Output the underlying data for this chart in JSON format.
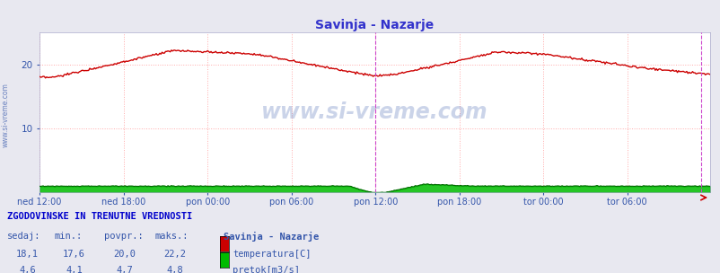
{
  "title": "Savinja - Nazarje",
  "title_color": "#3333cc",
  "bg_color": "#e8e8f0",
  "plot_bg_color": "#ffffff",
  "grid_color": "#ffaaaa",
  "xlim": [
    0,
    575
  ],
  "ylim": [
    0,
    25
  ],
  "yticks": [
    10,
    20
  ],
  "xtick_labels": [
    "ned 12:00",
    "ned 18:00",
    "pon 00:00",
    "pon 06:00",
    "pon 12:00",
    "pon 18:00",
    "tor 00:00",
    "tor 06:00"
  ],
  "xtick_positions": [
    0,
    72,
    144,
    216,
    288,
    360,
    432,
    504
  ],
  "watermark_text": "www.si-vreme.com",
  "watermark_color": "#3355aa",
  "watermark_alpha": 0.25,
  "left_label": "www.si-vreme.com",
  "left_label_color": "#3355aa",
  "temp_color": "#cc0000",
  "flow_color": "#006600",
  "flow_fill_color": "#00bb00",
  "vline_color": "#cc44cc",
  "vline_pos": 288,
  "right_vline_pos": 567,
  "footer_title": "ZGODOVINSKE IN TRENUTNE VREDNOSTI",
  "footer_title_color": "#0000cc",
  "footer_cols": [
    "sedaj:",
    "min.:",
    "povpr.:",
    "maks.:"
  ],
  "footer_data_temp": [
    "18,1",
    "17,6",
    "20,0",
    "22,2"
  ],
  "footer_data_flow": [
    "4,6",
    "4,1",
    "4,7",
    "4,8"
  ],
  "footer_color": "#3355aa",
  "station_name": "Savinja - Nazarje",
  "label_temp": "temperatura[C]",
  "label_flow": "pretok[m3/s]"
}
